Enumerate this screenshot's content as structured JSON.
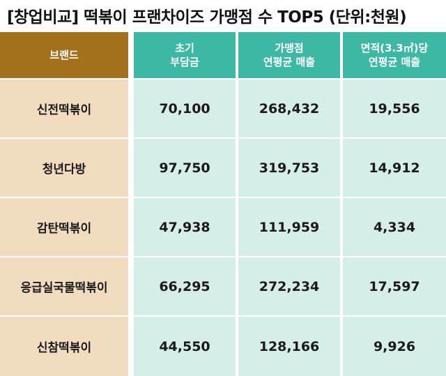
{
  "title": {
    "open": "[창업비교] 떡볶이 프랜차이즈 가맹점 수 TOP5 (단위",
    "close": ":천원)"
  },
  "header": {
    "brand": "브랜드",
    "col1_line1": "초기",
    "col1_line2": "부담금",
    "col2_line1": "가맹점",
    "col2_line2": "연평균 매출",
    "col3_line1": "면적(3.3㎡)당",
    "col3_line2": "연평균 매출"
  },
  "rows": [
    {
      "brand": "신전떡볶이",
      "initial": "70,100",
      "avg_sales": "268,432",
      "per_area": "19,556"
    },
    {
      "brand": "청년다방",
      "initial": "97,750",
      "avg_sales": "319,753",
      "per_area": "14,912"
    },
    {
      "brand": "감탄떡볶이",
      "initial": "47,938",
      "avg_sales": "111,959",
      "per_area": "4,334"
    },
    {
      "brand": "응급실국물떡볶이",
      "initial": "66,295",
      "avg_sales": "272,234",
      "per_area": "17,597"
    },
    {
      "brand": "신참떡볶이",
      "initial": "44,550",
      "avg_sales": "128,166",
      "per_area": "9,926"
    }
  ],
  "colors": {
    "brand_header": "#a3701c",
    "column_header": "#3cb8a4",
    "brand_cell": "#f1dcc0",
    "value_cell": "#d6eeea"
  }
}
